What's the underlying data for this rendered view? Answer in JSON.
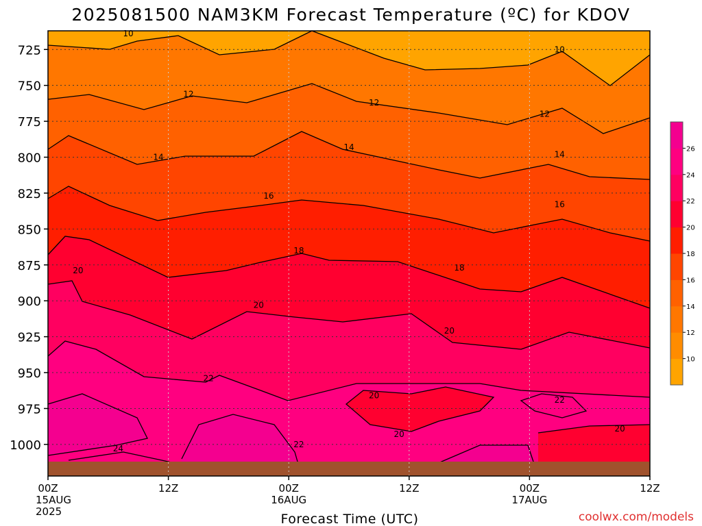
{
  "chart_data": {
    "type": "heatmap",
    "title": "2025081500 NAM3KM Forecast Temperature (ºC) for KDOV",
    "xlabel": "Forecast Time (UTC)",
    "ylabel": "",
    "credit": "coolwx.com/models",
    "x_range_hours": [
      0,
      60
    ],
    "y_range_hpa": [
      712,
      1022
    ],
    "y_ticks": [
      725,
      750,
      775,
      800,
      825,
      850,
      875,
      900,
      925,
      950,
      975,
      1000
    ],
    "x_ticks": [
      {
        "hour": 0,
        "lines": [
          "00Z",
          "15AUG",
          "2025"
        ]
      },
      {
        "hour": 12,
        "lines": [
          "12Z"
        ]
      },
      {
        "hour": 24,
        "lines": [
          "00Z",
          "16AUG"
        ]
      },
      {
        "hour": 36,
        "lines": [
          "12Z"
        ]
      },
      {
        "hour": 48,
        "lines": [
          "00Z",
          "17AUG"
        ]
      },
      {
        "hour": 60,
        "lines": [
          "12Z"
        ]
      }
    ],
    "grid": true,
    "units": "ºC",
    "colorbar": {
      "ticks": [
        10,
        12,
        14,
        16,
        18,
        20,
        22,
        24,
        26
      ],
      "colors": [
        "#ffa400",
        "#ff8c00",
        "#ff7700",
        "#ff6100",
        "#ff4500",
        "#ff1e00",
        "#ff0030",
        "#ff0060",
        "#ff0080",
        "#f4008f"
      ]
    },
    "ground_color": "#a0522d",
    "contour_labels": [
      {
        "value": 10,
        "hour": 8.0,
        "hpa": 714
      },
      {
        "value": 10,
        "hour": 51.0,
        "hpa": 725
      },
      {
        "value": 12,
        "hour": 14.0,
        "hpa": 756
      },
      {
        "value": 12,
        "hour": 32.5,
        "hpa": 762
      },
      {
        "value": 12,
        "hour": 49.5,
        "hpa": 770
      },
      {
        "value": 14,
        "hour": 11.0,
        "hpa": 800
      },
      {
        "value": 14,
        "hour": 30.0,
        "hpa": 793
      },
      {
        "value": 14,
        "hour": 51.0,
        "hpa": 798
      },
      {
        "value": 16,
        "hour": 22.0,
        "hpa": 827
      },
      {
        "value": 16,
        "hour": 51.0,
        "hpa": 833
      },
      {
        "value": 18,
        "hour": 25.0,
        "hpa": 865
      },
      {
        "value": 18,
        "hour": 41.0,
        "hpa": 877
      },
      {
        "value": 20,
        "hour": 3.0,
        "hpa": 879
      },
      {
        "value": 20,
        "hour": 21.0,
        "hpa": 903
      },
      {
        "value": 20,
        "hour": 40.0,
        "hpa": 921
      },
      {
        "value": 20,
        "hour": 32.5,
        "hpa": 966
      },
      {
        "value": 20,
        "hour": 35.0,
        "hpa": 993
      },
      {
        "value": 20,
        "hour": 57.0,
        "hpa": 989
      },
      {
        "value": 22,
        "hour": 16.0,
        "hpa": 954
      },
      {
        "value": 22,
        "hour": 25.0,
        "hpa": 1000
      },
      {
        "value": 22,
        "hour": 51.0,
        "hpa": 969
      },
      {
        "value": 24,
        "hour": 7.0,
        "hpa": 1003
      }
    ]
  }
}
